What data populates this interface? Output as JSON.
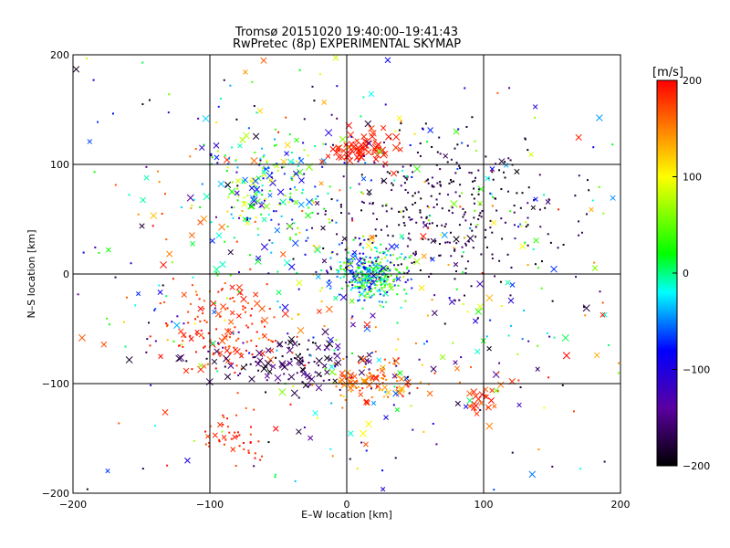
{
  "chart_data": {
    "type": "scatter",
    "title": "Tromsø 20151020 19:40:00–19:41:43",
    "subtitle": "RwPretec (8p) EXPERIMENTAL SKYMAP",
    "xlabel": "E–W location [km]",
    "ylabel": "N–S location [km]",
    "xlim": [
      -200,
      200
    ],
    "ylim": [
      -200,
      200
    ],
    "x_ticks": [
      -200,
      -100,
      0,
      100,
      200
    ],
    "y_ticks": [
      -200,
      -100,
      0,
      100,
      200
    ],
    "x_tick_labels": [
      "−200",
      "−100",
      "0",
      "100",
      "200"
    ],
    "y_tick_labels": [
      "−200",
      "−100",
      "0",
      "100",
      "200"
    ],
    "grid": true,
    "colorbar": {
      "label": "[m/s]",
      "range": [
        -200,
        200
      ],
      "ticks": [
        200,
        100,
        0,
        -100,
        -200
      ],
      "tick_labels": [
        "200",
        "100",
        "0",
        "−100",
        "−200"
      ],
      "stops": [
        "#000000",
        "#5a00a0",
        "#0000ff",
        "#00ffff",
        "#00ff00",
        "#ffff00",
        "#ff0000"
      ]
    },
    "markers": [
      "small dot (meteor echo)",
      "cross"
    ],
    "clusters": [
      {
        "x": 15,
        "y": 0,
        "sx": 14,
        "sy": 12,
        "n": 340,
        "v": [
          -120,
          80
        ],
        "cross": 0.1
      },
      {
        "x": 70,
        "y": 60,
        "sx": 40,
        "sy": 35,
        "n": 300,
        "v": [
          -200,
          -150
        ],
        "cross": 0.05
      },
      {
        "x": -60,
        "y": 80,
        "sx": 22,
        "sy": 22,
        "n": 170,
        "v": [
          -130,
          110
        ],
        "cross": 0.35
      },
      {
        "x": 10,
        "y": 115,
        "sx": 12,
        "sy": 7,
        "n": 70,
        "v": [
          180,
          200
        ],
        "cross": 0.9
      },
      {
        "x": -90,
        "y": -50,
        "sx": 22,
        "sy": 22,
        "n": 140,
        "v": [
          160,
          200
        ],
        "cross": 0.3
      },
      {
        "x": -40,
        "y": -80,
        "sx": 35,
        "sy": 12,
        "n": 120,
        "v": [
          -200,
          -140
        ],
        "cross": 0.5
      },
      {
        "x": 20,
        "y": -95,
        "sx": 20,
        "sy": 10,
        "n": 100,
        "v": [
          120,
          200
        ],
        "cross": 0.5
      },
      {
        "x": -80,
        "y": -150,
        "sx": 10,
        "sy": 12,
        "n": 40,
        "v": [
          170,
          200
        ],
        "cross": 0.2
      },
      {
        "x": 105,
        "y": -115,
        "sx": 8,
        "sy": 8,
        "n": 25,
        "v": [
          150,
          200
        ],
        "cross": 0.7
      },
      {
        "x": 0,
        "y": 0,
        "sx": 115,
        "sy": 115,
        "n": 700,
        "v": [
          -200,
          200
        ],
        "cross": 0.28
      }
    ]
  }
}
